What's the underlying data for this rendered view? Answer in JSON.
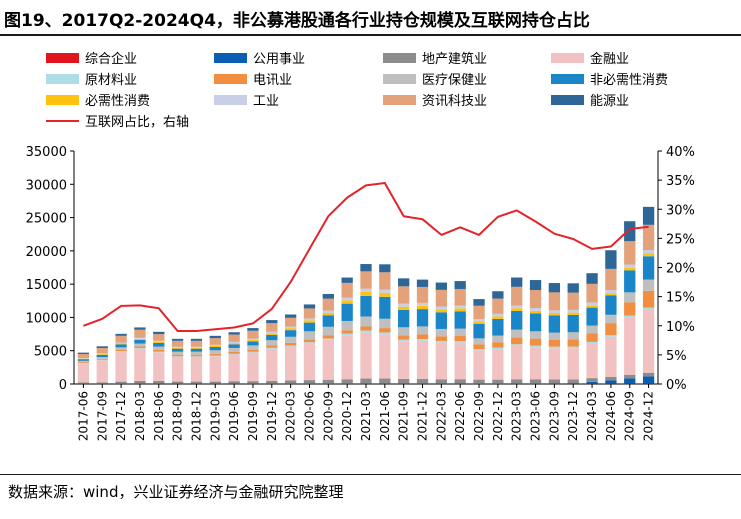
{
  "title": "图19、2017Q2-2024Q4，非公募港股通各行业持仓规模及互联网持仓占比",
  "source": "数据来源：wind，兴业证券经济与金融研究院整理",
  "chart_data": {
    "type": "bar",
    "stacked": true,
    "categories": [
      "2017-06",
      "2017-09",
      "2017-12",
      "2018-03",
      "2018-06",
      "2018-09",
      "2018-12",
      "2019-03",
      "2019-06",
      "2019-09",
      "2019-12",
      "2020-03",
      "2020-06",
      "2020-09",
      "2020-12",
      "2021-03",
      "2021-06",
      "2021-09",
      "2021-12",
      "2022-03",
      "2022-06",
      "2022-09",
      "2022-12",
      "2023-03",
      "2023-06",
      "2023-09",
      "2023-12",
      "2024-03",
      "2024-06",
      "2024-09",
      "2024-12"
    ],
    "y_left": {
      "min": 0,
      "max": 35000,
      "step": 5000
    },
    "y_right": {
      "min": 0,
      "max": 0.4,
      "step": 0.05,
      "format": "percent"
    },
    "grid": false,
    "legend_position": "top",
    "series": [
      {
        "name": "综合企业",
        "color": "#e0151d",
        "values": [
          20,
          20,
          25,
          30,
          30,
          25,
          25,
          25,
          25,
          30,
          30,
          30,
          30,
          30,
          40,
          40,
          40,
          40,
          40,
          40,
          40,
          35,
          35,
          35,
          35,
          35,
          35,
          35,
          35,
          40,
          40
        ]
      },
      {
        "name": "公用事业",
        "color": "#0a5fb5",
        "values": [
          30,
          30,
          30,
          40,
          40,
          40,
          40,
          40,
          50,
          50,
          50,
          60,
          60,
          60,
          70,
          80,
          80,
          80,
          80,
          80,
          80,
          70,
          70,
          80,
          80,
          90,
          100,
          300,
          500,
          800,
          1100
        ]
      },
      {
        "name": "地产建筑业",
        "color": "#8c8c8c",
        "values": [
          200,
          200,
          300,
          400,
          400,
          300,
          300,
          300,
          350,
          350,
          400,
          450,
          500,
          550,
          600,
          700,
          700,
          650,
          650,
          600,
          600,
          550,
          550,
          600,
          600,
          550,
          550,
          550,
          550,
          550,
          550
        ]
      },
      {
        "name": "金融业",
        "color": "#f2c2c2",
        "values": [
          2800,
          3300,
          4500,
          4800,
          4300,
          3700,
          3700,
          3800,
          4000,
          4300,
          4800,
          5100,
          5500,
          6000,
          6600,
          6900,
          6600,
          5600,
          5700,
          5500,
          5500,
          4400,
          4600,
          5000,
          4800,
          4700,
          4700,
          5200,
          6000,
          8600,
          9500
        ]
      },
      {
        "name": "原材料业",
        "color": "#b0dce8",
        "values": [
          80,
          90,
          100,
          110,
          100,
          90,
          90,
          100,
          110,
          120,
          150,
          150,
          180,
          200,
          260,
          320,
          330,
          300,
          280,
          250,
          240,
          200,
          220,
          260,
          250,
          240,
          240,
          240,
          260,
          280,
          300
        ]
      },
      {
        "name": "电讯业",
        "color": "#f28e3f",
        "values": [
          150,
          150,
          200,
          250,
          250,
          250,
          250,
          250,
          280,
          300,
          350,
          400,
          450,
          450,
          500,
          600,
          650,
          650,
          700,
          700,
          750,
          700,
          800,
          1000,
          1050,
          1050,
          1100,
          1300,
          1800,
          2000,
          2500
        ]
      },
      {
        "name": "医疗保健业",
        "color": "#bfbfbf",
        "values": [
          200,
          250,
          350,
          450,
          500,
          450,
          450,
          550,
          600,
          650,
          800,
          900,
          1200,
          1300,
          1400,
          1500,
          1400,
          1200,
          1200,
          1100,
          1100,
          900,
          1000,
          1200,
          1100,
          1050,
          1050,
          1150,
          1250,
          1500,
          1700
        ]
      },
      {
        "name": "非必需性消费",
        "color": "#1a85c7",
        "values": [
          250,
          350,
          450,
          550,
          550,
          450,
          450,
          500,
          550,
          600,
          800,
          1000,
          1300,
          1700,
          2600,
          3100,
          3300,
          2600,
          2600,
          2500,
          2600,
          2200,
          2500,
          2800,
          2700,
          2600,
          2600,
          2700,
          2900,
          3300,
          3500
        ]
      },
      {
        "name": "必需性消费",
        "color": "#ffc20e",
        "values": [
          80,
          100,
          130,
          150,
          150,
          130,
          130,
          150,
          180,
          200,
          250,
          300,
          350,
          400,
          500,
          600,
          600,
          500,
          500,
          450,
          450,
          350,
          380,
          400,
          380,
          350,
          350,
          350,
          350,
          400,
          420
        ]
      },
      {
        "name": "工业",
        "color": "#c9cfe6",
        "values": [
          100,
          120,
          150,
          170,
          170,
          150,
          150,
          170,
          180,
          200,
          220,
          250,
          280,
          330,
          420,
          480,
          480,
          450,
          430,
          420,
          400,
          350,
          380,
          420,
          420,
          400,
          400,
          420,
          450,
          480,
          500
        ]
      },
      {
        "name": "资讯科技业",
        "color": "#e3a27b",
        "values": [
          600,
          800,
          1000,
          1200,
          1000,
          900,
          900,
          1000,
          1100,
          1200,
          1300,
          1300,
          1500,
          1800,
          2200,
          2600,
          2600,
          2600,
          2400,
          2500,
          2500,
          2000,
          2300,
          2800,
          2700,
          2700,
          2600,
          2800,
          3200,
          3500,
          3800
        ]
      },
      {
        "name": "能源业",
        "color": "#2e6697",
        "values": [
          200,
          250,
          300,
          350,
          350,
          300,
          300,
          350,
          350,
          400,
          450,
          500,
          600,
          700,
          800,
          1100,
          1200,
          1200,
          1100,
          1100,
          1200,
          1000,
          1100,
          1400,
          1500,
          1400,
          1400,
          1600,
          2800,
          3000,
          2700
        ]
      },
      {
        "name": "互联网占比，右轴",
        "type": "line",
        "axis": "right",
        "color": "#e3242b",
        "values": [
          0.1,
          0.112,
          0.134,
          0.135,
          0.13,
          0.091,
          0.091,
          0.094,
          0.097,
          0.104,
          0.129,
          0.175,
          0.232,
          0.288,
          0.32,
          0.341,
          0.345,
          0.288,
          0.283,
          0.256,
          0.269,
          0.256,
          0.287,
          0.298,
          0.279,
          0.258,
          0.249,
          0.232,
          0.236,
          0.266,
          0.27
        ]
      }
    ]
  }
}
